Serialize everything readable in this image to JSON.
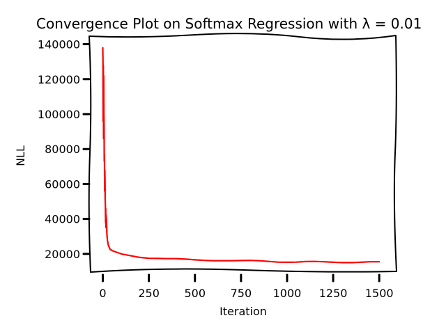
{
  "chart_data": {
    "type": "line",
    "title": "Convergence Plot on Softmax Regression with λ = 0.01",
    "xlabel": "Iteration",
    "ylabel": "NLL",
    "xlim": [
      -70,
      1590
    ],
    "ylim": [
      10000,
      145000
    ],
    "xticks": [
      0,
      250,
      500,
      750,
      1000,
      1250,
      1500
    ],
    "yticks": [
      20000,
      40000,
      60000,
      80000,
      100000,
      120000,
      140000
    ],
    "grid": false,
    "legend": "none",
    "series": [
      {
        "color": "#ff0000",
        "x": [
          0,
          1,
          2,
          3,
          4,
          5,
          6,
          7,
          8,
          9,
          10,
          11,
          12,
          13,
          14,
          15,
          16,
          17,
          18,
          19,
          20,
          22,
          25,
          30,
          40,
          60,
          100,
          150,
          200,
          250,
          300,
          350,
          400,
          450,
          500,
          550,
          600,
          650,
          700,
          750,
          800,
          850,
          900,
          950,
          1000,
          1050,
          1100,
          1150,
          1200,
          1250,
          1300,
          1350,
          1400,
          1450,
          1500
        ],
        "y": [
          138000,
          130000,
          96000,
          128000,
          86000,
          122000,
          100000,
          92000,
          73000,
          77000,
          56000,
          68000,
          62000,
          52000,
          48000,
          38000,
          46000,
          35000,
          42000,
          36000,
          40000,
          32000,
          28000,
          25000,
          22500,
          21500,
          20000,
          19000,
          18000,
          17500,
          17400,
          17300,
          17300,
          17000,
          16600,
          16300,
          16100,
          16100,
          16100,
          16200,
          16300,
          16100,
          15700,
          15300,
          15200,
          15300,
          15600,
          15700,
          15500,
          15200,
          15000,
          15000,
          15200,
          15500,
          15500
        ]
      }
    ]
  }
}
